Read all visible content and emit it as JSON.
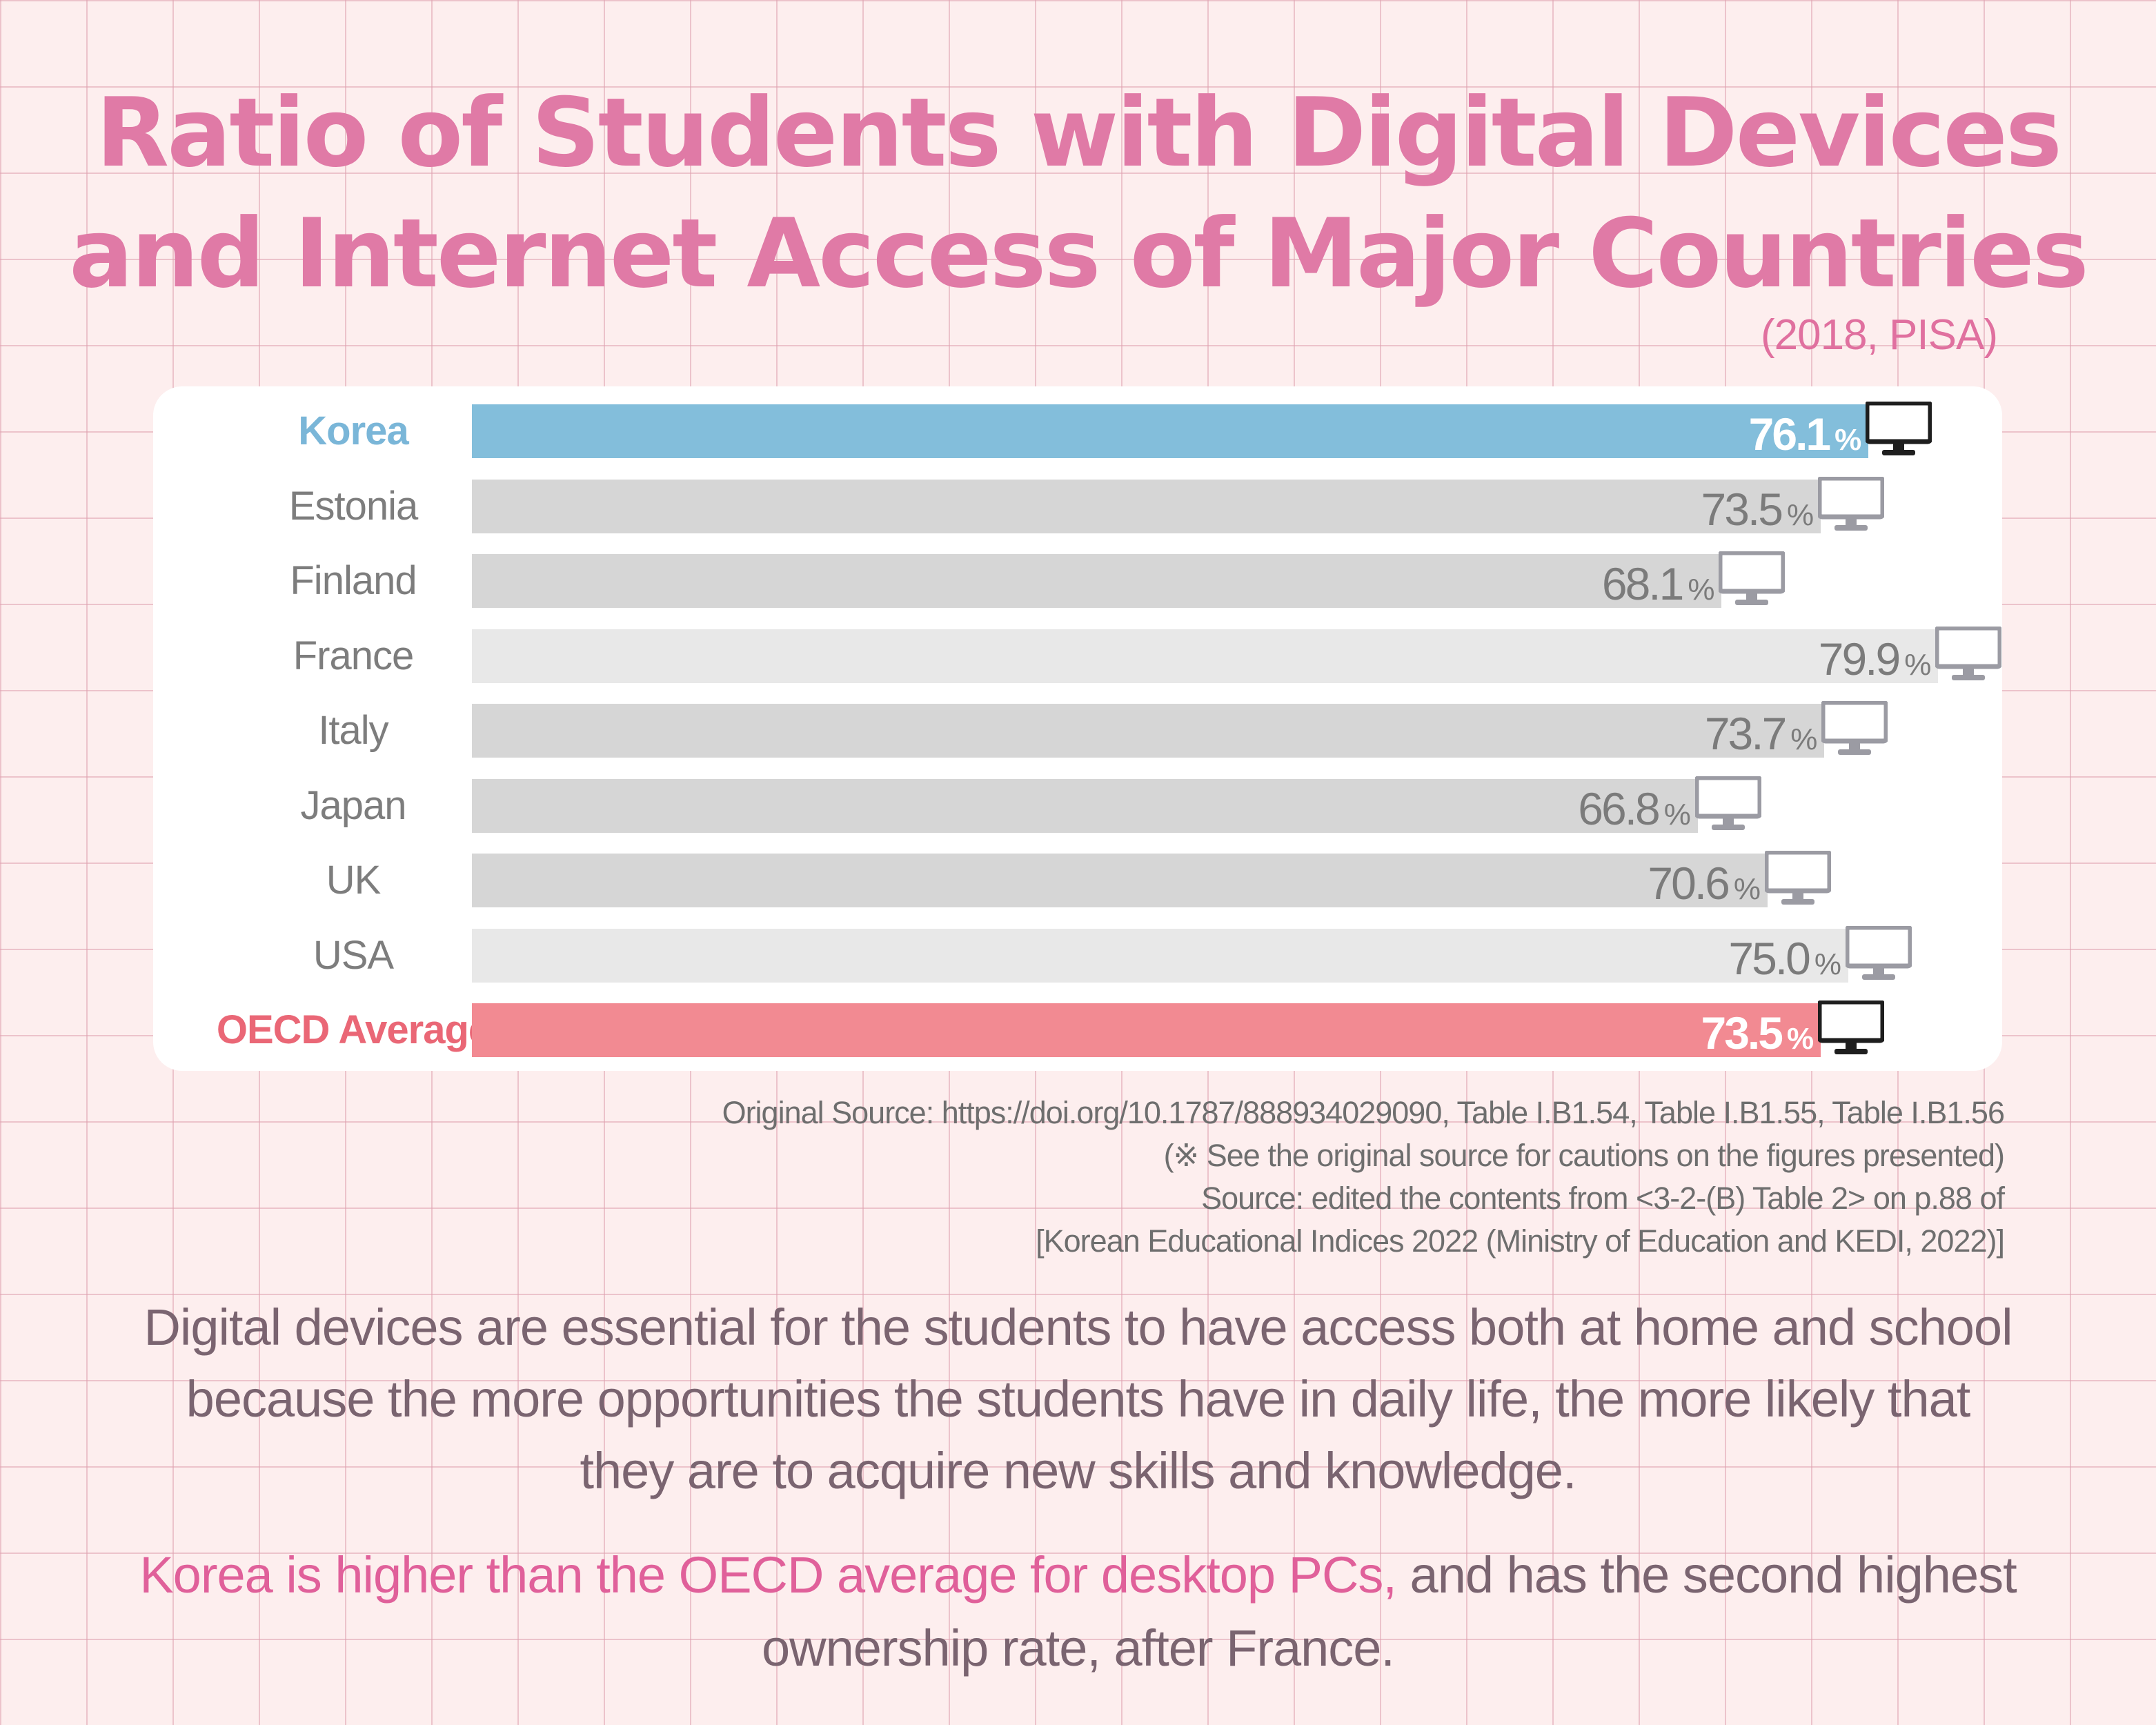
{
  "title": {
    "line1": "Ratio of Students with Digital Devices",
    "line2": "and Internet Access of Major Countries"
  },
  "subtitle": "(2018, PISA)",
  "colors": {
    "korea": "#83bedb",
    "oecd": "#f28a92",
    "grey": "#d6d6d6",
    "light_grey": "#e8e8e8",
    "korea_label": "#7ab6d8",
    "oecd_label": "#ea6776",
    "grey_label": "#7d7d7d"
  },
  "chart_data": {
    "type": "bar",
    "orientation": "horizontal",
    "title": "Ratio of Students with Digital Devices and Internet Access of Major Countries",
    "subtitle": "(2018, PISA)",
    "unit": "%",
    "categories": [
      "Korea",
      "Estonia",
      "Finland",
      "France",
      "Italy",
      "Japan",
      "UK",
      "USA",
      "OECD Average"
    ],
    "values": [
      76.1,
      73.5,
      68.1,
      79.9,
      73.7,
      66.8,
      70.6,
      75.0,
      73.5
    ],
    "value_labels": [
      "76.1",
      "73.5",
      "68.1",
      "79.9",
      "73.7",
      "66.8",
      "70.6",
      "75.0",
      "73.5"
    ],
    "highlight": [
      "korea",
      "",
      "",
      "",
      "",
      "",
      "",
      "",
      "oecd"
    ],
    "xlim": [
      0,
      100
    ],
    "icon": "desktop-monitor-icon"
  },
  "notes": {
    "line1": "Original Source: https://doi.org/10.1787/888934029090, Table I.B1.54, Table I.B1.55, Table I.B1.56",
    "line2": "(※ See the original source for cautions on the figures presented)",
    "line3": "Source: edited the contents from <3-2-(B) Table 2> on p.88 of",
    "line4": "[Korean Educational Indices 2022 (Ministry of Education and KEDI, 2022)]"
  },
  "body": {
    "line1": "Digital devices are essential for the students to have access both at home and school",
    "line2": "because the more opportunities the students have in daily life, the more likely that",
    "line3": "they are to acquire new skills and knowledge.",
    "highlight": "Korea is higher than the OECD average for desktop PCs,",
    "rest": " and has the second highest",
    "line5": "ownership rate, after France."
  }
}
